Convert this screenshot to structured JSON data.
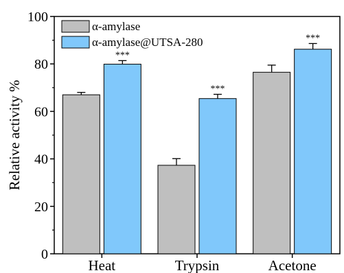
{
  "chart_data": {
    "type": "bar",
    "categories": [
      "Heat",
      "Trypsin",
      "Acetone"
    ],
    "series": [
      {
        "name": "α-amylase",
        "values": [
          67.0,
          37.3,
          76.5
        ],
        "errors": [
          1.0,
          2.8,
          3.0
        ],
        "color": "#bfbfbf"
      },
      {
        "name": "α-amylase@UTSA-280",
        "values": [
          79.9,
          65.4,
          86.2
        ],
        "errors": [
          1.5,
          1.8,
          2.4
        ],
        "color": "#80c8fb"
      }
    ],
    "significance": [
      "***",
      "***",
      "***"
    ],
    "title": "",
    "xlabel": "",
    "ylabel": "Relative activity %",
    "ylim": [
      0,
      100
    ],
    "yticks": [
      0,
      20,
      40,
      60,
      80,
      100
    ],
    "legend_position": "top-left",
    "grid": false
  }
}
